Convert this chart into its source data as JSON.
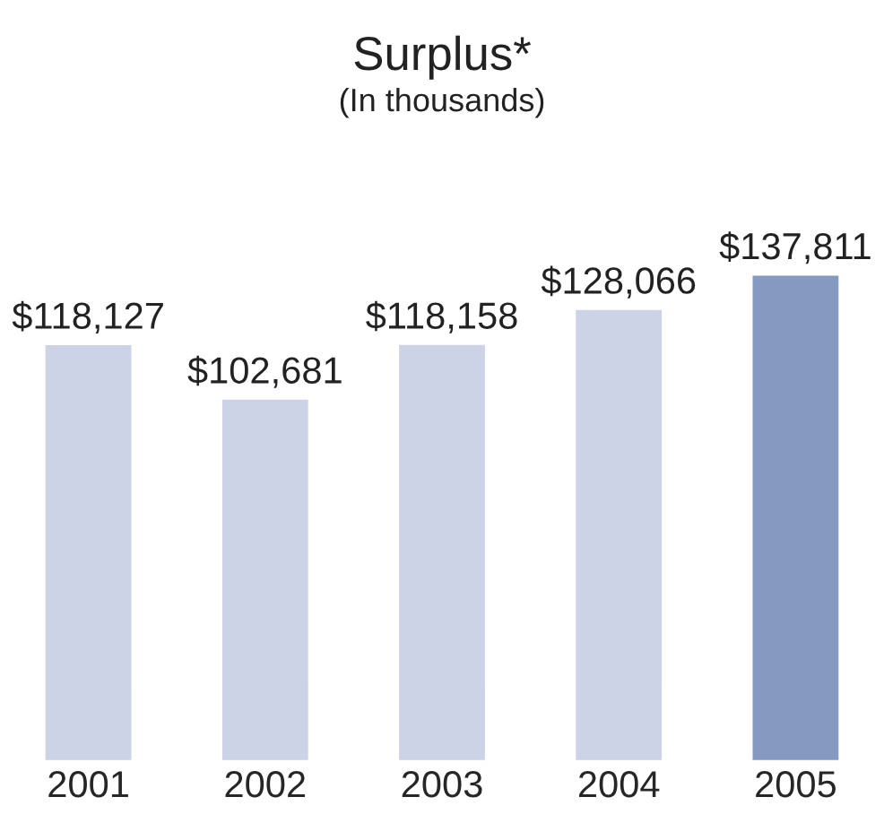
{
  "chart_data": {
    "type": "bar",
    "title": "Surplus*",
    "subtitle": "(In thousands)",
    "categories": [
      "2001",
      "2002",
      "2003",
      "2004",
      "2005"
    ],
    "values": [
      118127,
      102681,
      118158,
      128066,
      137811
    ],
    "colors": [
      "#ccd3e6",
      "#ccd3e6",
      "#ccd3e6",
      "#ccd3e6",
      "#8599c1"
    ],
    "value_labels": [
      "$118,127",
      "$102,681",
      "$118,158",
      "$128,066",
      "$137,811"
    ],
    "tick_labels": "x",
    "grid": false,
    "legend": false
  }
}
